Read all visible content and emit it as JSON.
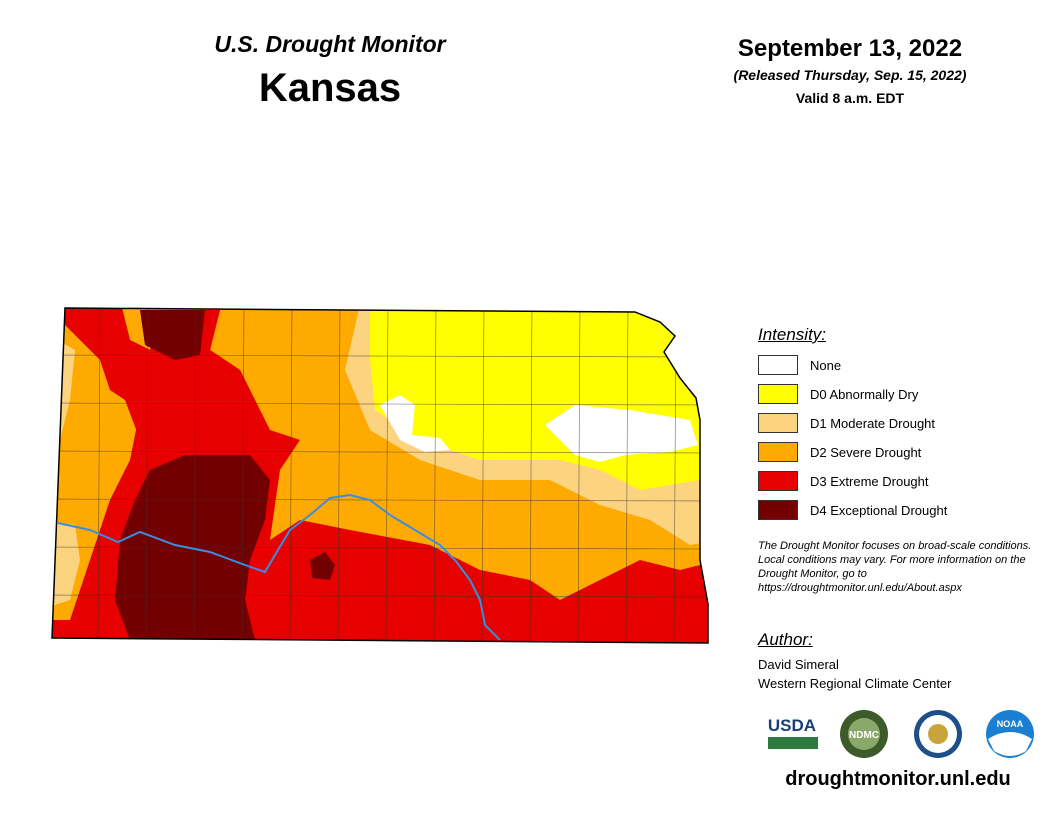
{
  "header": {
    "title": "U.S. Drought Monitor",
    "state": "Kansas",
    "date": "September 13, 2022",
    "released": "(Released Thursday, Sep. 15, 2022)",
    "valid": "Valid 8 a.m. EDT"
  },
  "legend": {
    "title": "Intensity:",
    "items": [
      {
        "label": "None",
        "color": "#ffffff"
      },
      {
        "label": "D0 Abnormally Dry",
        "color": "#ffff00"
      },
      {
        "label": "D1 Moderate Drought",
        "color": "#fcd37f"
      },
      {
        "label": "D2 Severe Drought",
        "color": "#ffaa00"
      },
      {
        "label": "D3 Extreme Drought",
        "color": "#e60000"
      },
      {
        "label": "D4 Exceptional Drought",
        "color": "#730000"
      }
    ]
  },
  "note": "The Drought Monitor focuses on broad-scale conditions. Local conditions may vary. For more information on the Drought Monitor, go to https://droughtmonitor.unl.edu/About.aspx",
  "author": {
    "title": "Author:",
    "name": "David Simeral",
    "org": "Western Regional Climate Center"
  },
  "logos": [
    "USDA",
    "NDMC",
    "NOAA"
  ],
  "url": "droughtmonitor.unl.edu"
}
